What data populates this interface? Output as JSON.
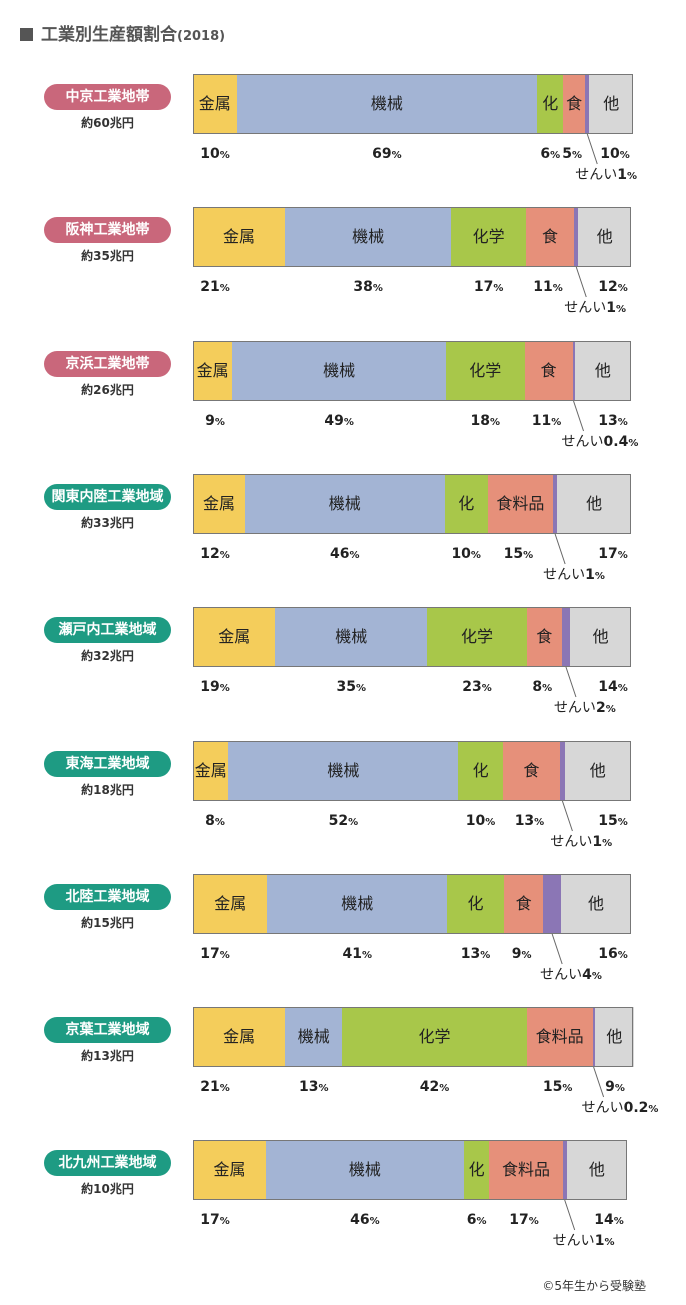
{
  "title": "工業別生産額割合",
  "year": "(2018)",
  "copyright": "©5年生から受験塾",
  "unit_percent": "%",
  "fiber_label": "せんい",
  "colors": {
    "金属": "#f4cd5b",
    "機械": "#a3b4d4",
    "化学": "#a8c74a",
    "食料品": "#e6907a",
    "せんい": "#8b76b5",
    "その他": "#d7d7d7",
    "belt_badge": "#c9677b",
    "region_badge": "#1e9b83"
  },
  "chart_data": {
    "type": "bar",
    "stacked": true,
    "orientation": "horizontal",
    "title": "工業別生産額割合",
    "subtitle": "(2018)",
    "series_order": [
      "金属",
      "機械",
      "化学",
      "食料品",
      "せんい",
      "その他"
    ],
    "regions": [
      {
        "name": "中京工業地帯",
        "kind": "belt",
        "total": "約60兆円",
        "values": {
          "金属": 10,
          "機械": 69,
          "化学": 6,
          "食料品": 5,
          "せんい": 1,
          "その他": 10
        },
        "labels": {
          "金属": "金属",
          "機械": "機械",
          "化学": "化",
          "食料品": "食",
          "せんい": "",
          "その他": "他"
        },
        "pct_text": {
          "金属": "10",
          "機械": "69",
          "化学": "6",
          "食料品": "5",
          "せんい": "1",
          "その他": "10"
        }
      },
      {
        "name": "阪神工業地帯",
        "kind": "belt",
        "total": "約35兆円",
        "values": {
          "金属": 21,
          "機械": 38,
          "化学": 17,
          "食料品": 11,
          "せんい": 1,
          "その他": 12
        },
        "labels": {
          "金属": "金属",
          "機械": "機械",
          "化学": "化学",
          "食料品": "食",
          "せんい": "",
          "その他": "他"
        },
        "pct_text": {
          "金属": "21",
          "機械": "38",
          "化学": "17",
          "食料品": "11",
          "せんい": "1",
          "その他": "12"
        }
      },
      {
        "name": "京浜工業地帯",
        "kind": "belt",
        "total": "約26兆円",
        "values": {
          "金属": 9,
          "機械": 49,
          "化学": 18,
          "食料品": 11,
          "せんい": 0.4,
          "その他": 13
        },
        "labels": {
          "金属": "金属",
          "機械": "機械",
          "化学": "化学",
          "食料品": "食",
          "せんい": "",
          "その他": "他"
        },
        "pct_text": {
          "金属": "9",
          "機械": "49",
          "化学": "18",
          "食料品": "11",
          "せんい": "0.4",
          "その他": "13"
        }
      },
      {
        "name": "関東内陸工業地域",
        "kind": "region",
        "total": "約33兆円",
        "values": {
          "金属": 12,
          "機械": 46,
          "化学": 10,
          "食料品": 15,
          "せんい": 1,
          "その他": 17
        },
        "labels": {
          "金属": "金属",
          "機械": "機械",
          "化学": "化",
          "食料品": "食料品",
          "せんい": "",
          "その他": "他"
        },
        "pct_text": {
          "金属": "12",
          "機械": "46",
          "化学": "10",
          "食料品": "15",
          "せんい": "1",
          "その他": "17"
        }
      },
      {
        "name": "瀬戸内工業地域",
        "kind": "region",
        "total": "約32兆円",
        "values": {
          "金属": 19,
          "機械": 35,
          "化学": 23,
          "食料品": 8,
          "せんい": 2,
          "その他": 14
        },
        "labels": {
          "金属": "金属",
          "機械": "機械",
          "化学": "化学",
          "食料品": "食",
          "せんい": "",
          "その他": "他"
        },
        "pct_text": {
          "金属": "19",
          "機械": "35",
          "化学": "23",
          "食料品": "8",
          "せんい": "2",
          "その他": "14"
        }
      },
      {
        "name": "東海工業地域",
        "kind": "region",
        "total": "約18兆円",
        "values": {
          "金属": 8,
          "機械": 52,
          "化学": 10,
          "食料品": 13,
          "せんい": 1,
          "その他": 15
        },
        "labels": {
          "金属": "金属",
          "機械": "機械",
          "化学": "化",
          "食料品": "食",
          "せんい": "",
          "その他": "他"
        },
        "pct_text": {
          "金属": "8",
          "機械": "52",
          "化学": "10",
          "食料品": "13",
          "せんい": "1",
          "その他": "15"
        }
      },
      {
        "name": "北陸工業地域",
        "kind": "region",
        "total": "約15兆円",
        "values": {
          "金属": 17,
          "機械": 41,
          "化学": 13,
          "食料品": 9,
          "せんい": 4,
          "その他": 16
        },
        "labels": {
          "金属": "金属",
          "機械": "機械",
          "化学": "化",
          "食料品": "食",
          "せんい": "",
          "その他": "他"
        },
        "pct_text": {
          "金属": "17",
          "機械": "41",
          "化学": "13",
          "食料品": "9",
          "せんい": "4",
          "その他": "16"
        }
      },
      {
        "name": "京葉工業地域",
        "kind": "region",
        "total": "約13兆円",
        "values": {
          "金属": 21,
          "機械": 13,
          "化学": 42,
          "食料品": 15,
          "せんい": 0.2,
          "その他": 9
        },
        "labels": {
          "金属": "金属",
          "機械": "機械",
          "化学": "化学",
          "食料品": "食料品",
          "せんい": "",
          "その他": "他"
        },
        "pct_text": {
          "金属": "21",
          "機械": "13",
          "化学": "42",
          "食料品": "15",
          "せんい": "0.2",
          "その他": "9"
        }
      },
      {
        "name": "北九州工業地域",
        "kind": "region",
        "total": "約10兆円",
        "values": {
          "金属": 17,
          "機械": 46,
          "化学": 6,
          "食料品": 17,
          "せんい": 1,
          "その他": 14
        },
        "labels": {
          "金属": "金属",
          "機械": "機械",
          "化学": "化",
          "食料品": "食料品",
          "せんい": "",
          "その他": "他"
        },
        "pct_text": {
          "金属": "17",
          "機械": "46",
          "化学": "6",
          "食料品": "17",
          "せんい": "1",
          "その他": "14"
        }
      }
    ]
  }
}
